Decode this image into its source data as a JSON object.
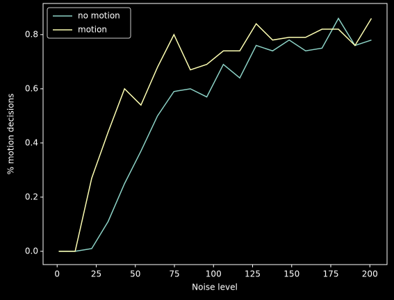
{
  "chart_data": {
    "type": "line",
    "xlabel": "Noise level",
    "ylabel": "% motion decisions",
    "x": [
      1,
      11.5,
      22.1,
      32.6,
      43.1,
      53.6,
      64.2,
      74.7,
      85.2,
      95.7,
      106.3,
      116.8,
      127.3,
      137.8,
      148.4,
      158.9,
      169.4,
      179.9,
      190.5,
      201
    ],
    "series": [
      {
        "name": "no motion",
        "color": "#8dd3c7",
        "values": [
          0,
          0,
          0.01,
          0.11,
          0.25,
          0.37,
          0.5,
          0.59,
          0.6,
          0.57,
          0.69,
          0.64,
          0.76,
          0.74,
          0.78,
          0.74,
          0.75,
          0.86,
          0.76,
          0.78
        ]
      },
      {
        "name": "motion",
        "color": "#feffb3",
        "values": [
          0,
          0,
          0.27,
          0.44,
          0.6,
          0.54,
          0.68,
          0.8,
          0.67,
          0.69,
          0.74,
          0.74,
          0.84,
          0.78,
          0.79,
          0.79,
          0.82,
          0.82,
          0.76,
          0.86
        ]
      }
    ],
    "xlim": [
      -9,
      211
    ],
    "ylim": [
      -0.049,
      0.915
    ],
    "xticks": [
      0,
      25,
      50,
      75,
      100,
      125,
      150,
      175,
      200
    ],
    "yticks": [
      {
        "value": 0,
        "label": "0.0"
      },
      {
        "value": 0.2,
        "label": "0.2"
      },
      {
        "value": 0.4,
        "label": "0.4"
      },
      {
        "value": 0.6,
        "label": "0.6"
      },
      {
        "value": 0.8,
        "label": "0.8"
      }
    ],
    "legend": "upper left"
  }
}
